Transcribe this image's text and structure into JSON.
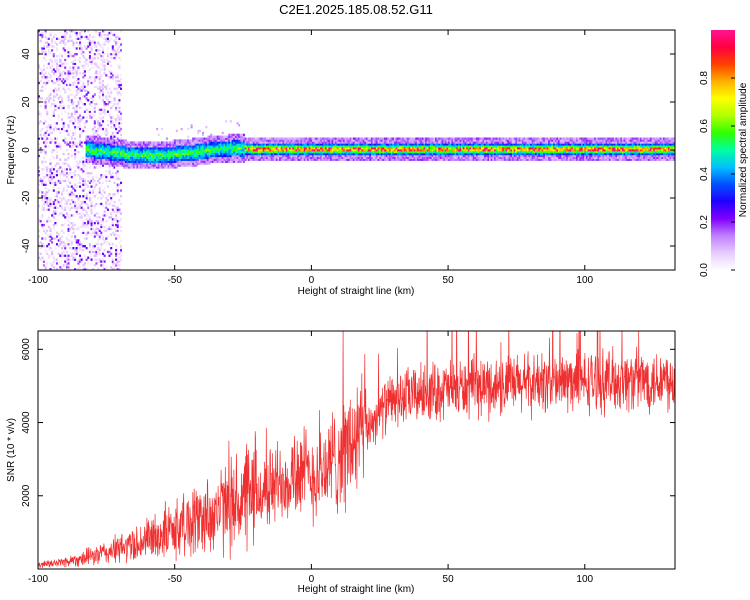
{
  "title": "C2E1.2025.185.08.52.G11",
  "chart_data": [
    {
      "type": "heatmap",
      "xlabel": "Height of straight line (km)",
      "ylabel": "Frequency (Hz)",
      "xlim": [
        -100,
        133
      ],
      "ylim": [
        -50,
        50
      ],
      "xticks": [
        "-100",
        "-50",
        "0",
        "50",
        "100"
      ],
      "yticks": [
        "-40",
        "-20",
        "0",
        "20",
        "40"
      ],
      "colorbar": {
        "label": "Normalized spectral amplitude",
        "range": [
          0,
          1
        ],
        "ticks": [
          "0.0",
          "0.2",
          "0.4",
          "0.6",
          "0.8"
        ],
        "colors": [
          "#ffffff",
          "#e6ccff",
          "#c080ff",
          "#8000ff",
          "#2000ff",
          "#0050ff",
          "#00c0ff",
          "#00ffa0",
          "#30ff00",
          "#b0ff00",
          "#ffff00",
          "#ffb000",
          "#ff4000",
          "#ff0040",
          "#ff1493"
        ]
      },
      "ridge": {
        "x": [
          -83,
          -75,
          -65,
          -55,
          -45,
          -35,
          -28,
          -20,
          -10,
          0,
          20,
          50,
          80,
          110,
          133
        ],
        "y": [
          0,
          -1,
          -2.5,
          -2.5,
          -1.5,
          0,
          0.5,
          0,
          0,
          0,
          0,
          0,
          0,
          0,
          0
        ]
      }
    },
    {
      "type": "line",
      "xlabel": "Height of straight line (km)",
      "ylabel": "SNR (10 * v/v)",
      "xlim": [
        -100,
        133
      ],
      "ylim": [
        0,
        6500
      ],
      "xticks": [
        "-100",
        "-50",
        "0",
        "50",
        "100"
      ],
      "yticks": [
        "2000",
        "4000",
        "6000"
      ],
      "series": [
        {
          "color": "#f03030",
          "x": [
            -100,
            -90,
            -80,
            -70,
            -60,
            -50,
            -40,
            -30,
            -20,
            -15,
            -10,
            -5,
            0,
            5,
            10,
            15,
            20,
            25,
            30,
            40,
            50,
            60,
            70,
            80,
            90,
            100,
            110,
            120,
            133
          ],
          "y": [
            100,
            200,
            350,
            550,
            800,
            1100,
            1400,
            1700,
            2000,
            2200,
            2500,
            2700,
            2500,
            2700,
            3100,
            3400,
            3800,
            4300,
            4600,
            4800,
            4900,
            4950,
            5000,
            5050,
            5100,
            5100,
            5150,
            5150,
            5200
          ]
        }
      ]
    }
  ]
}
